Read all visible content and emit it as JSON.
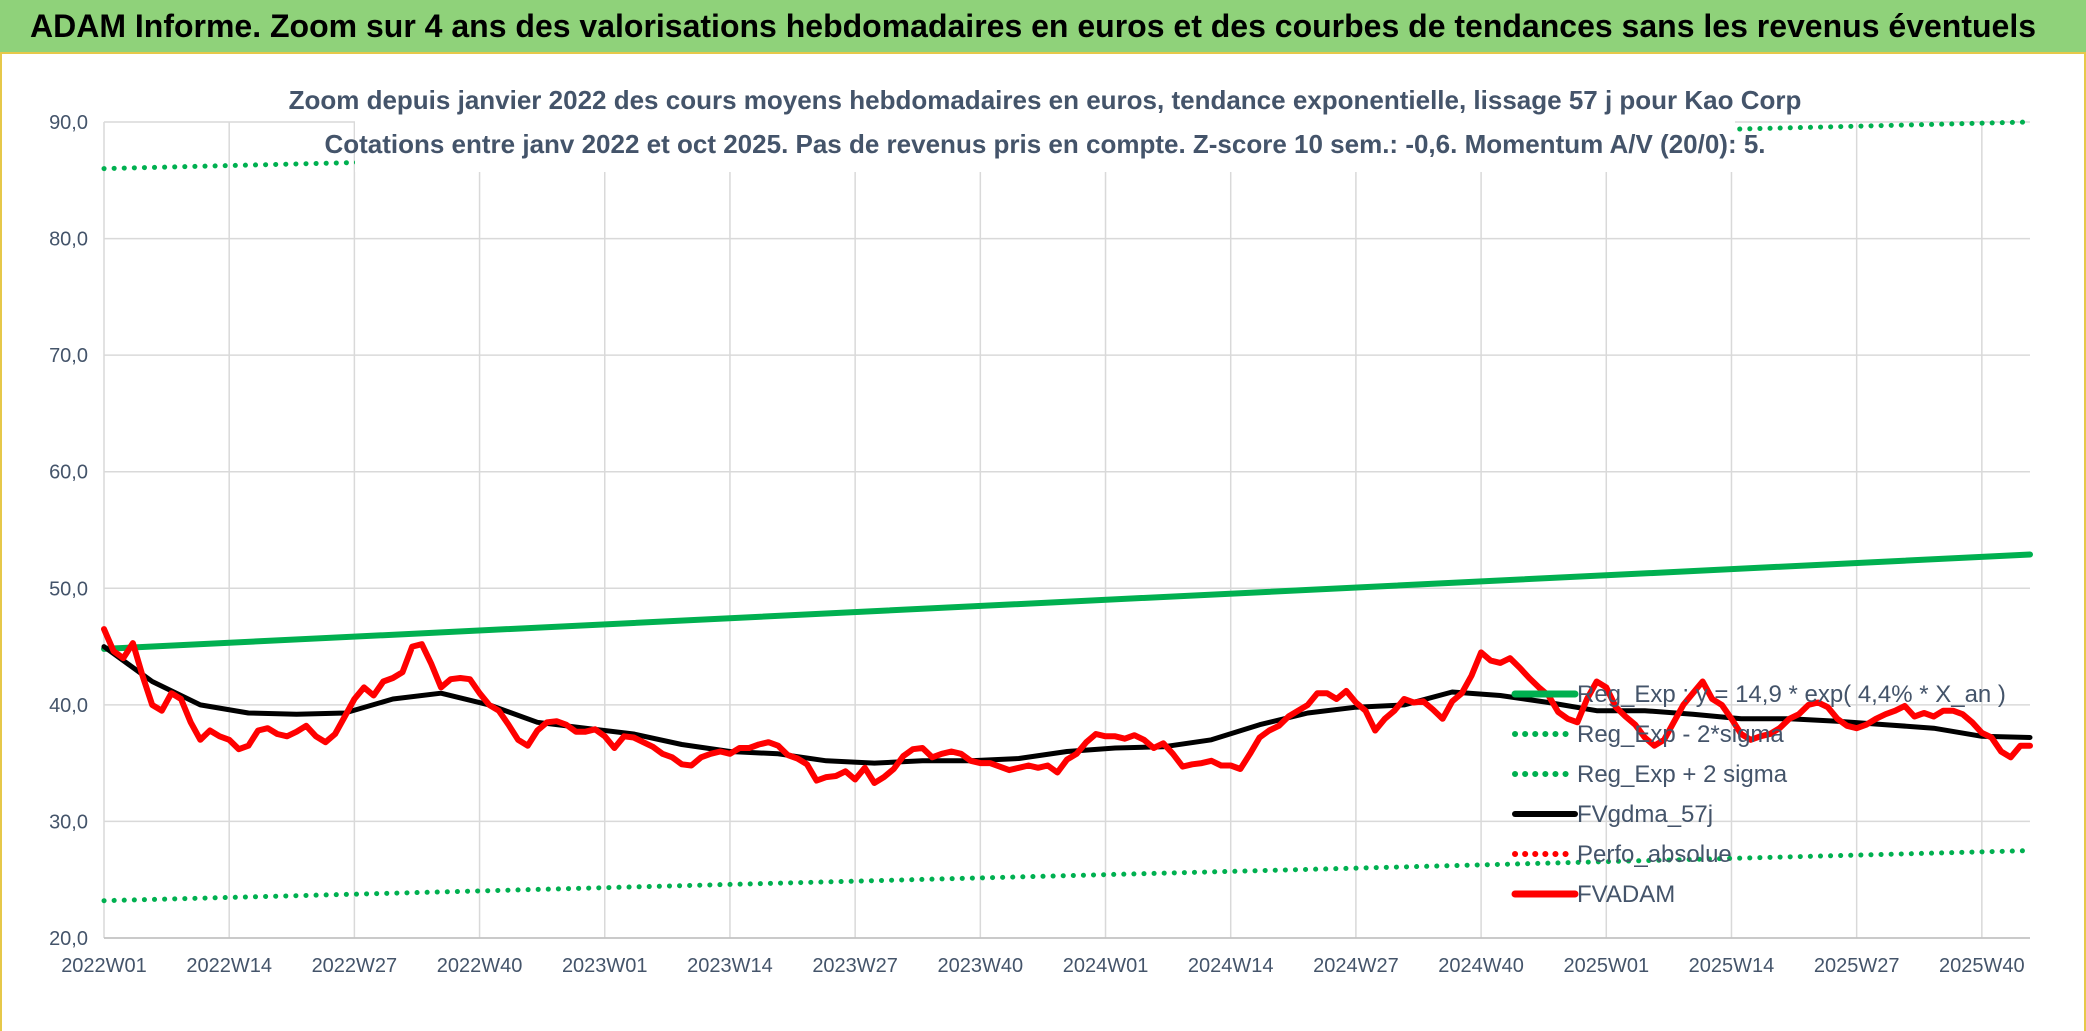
{
  "banner": {
    "title": "ADAM Informe. Zoom sur 4 ans des valorisations hebdomadaires en euros et des courbes de tendances sans les revenus éventuels"
  },
  "colors": {
    "banner_bg": "#8fd27a",
    "reg_exp": "#00b050",
    "fvgdma": "#000000",
    "fvadam": "#ff0000",
    "perfo": "#ff0000"
  },
  "chart_data": {
    "type": "line",
    "title": "Zoom depuis janvier 2022 des cours moyens hebdomadaires en euros, tendance exponentielle, lissage 57 j pour Kao Corp",
    "subtitle": "Cotations entre janv 2022 et oct 2025. Pas de revenus pris en compte. Z-score 10 sem.: -0,6. Momentum A/V (20/0): 5.",
    "ylim": [
      20,
      90
    ],
    "y_ticks": [
      "20,0",
      "30,0",
      "40,0",
      "50,0",
      "60,0",
      "70,0",
      "80,0",
      "90,0"
    ],
    "x_tick_labels": [
      "2022W01",
      "2022W14",
      "2022W27",
      "2022W40",
      "2023W01",
      "2023W14",
      "2023W27",
      "2023W40",
      "2024W01",
      "2024W14",
      "2024W27",
      "2024W40",
      "2025W01",
      "2025W14",
      "2025W27",
      "2025W40"
    ],
    "x_range_weeks": [
      0,
      200
    ],
    "grid": true,
    "legend_position": "right",
    "series": [
      {
        "name": "Reg_Exp : y = 14,9 * exp( 4,4% * X_an )",
        "style": "solid-thick",
        "color": "#00b050",
        "x": [
          0,
          200
        ],
        "values": [
          44.8,
          52.9
        ]
      },
      {
        "name": "Reg_Exp - 2*sigma",
        "style": "dotted",
        "color": "#00b050",
        "x": [
          0,
          200
        ],
        "values": [
          23.2,
          27.5
        ]
      },
      {
        "name": "Reg_Exp + 2 sigma",
        "style": "dotted",
        "color": "#00b050",
        "x": [
          0,
          200
        ],
        "values": [
          86.0,
          90.0
        ]
      },
      {
        "name": "FVgdma_57j",
        "style": "solid",
        "color": "#000000",
        "x": [
          0,
          5,
          10,
          15,
          20,
          25,
          30,
          35,
          40,
          45,
          50,
          55,
          60,
          65,
          70,
          75,
          80,
          85,
          90,
          95,
          100,
          105,
          110,
          115,
          120,
          125,
          130,
          135,
          140,
          145,
          150,
          155,
          160,
          165,
          170,
          175,
          180,
          185,
          190,
          195,
          200
        ],
        "values": [
          45.0,
          42.0,
          40.0,
          39.3,
          39.2,
          39.3,
          40.5,
          41.0,
          40.0,
          38.5,
          38.0,
          37.5,
          36.6,
          36.0,
          35.8,
          35.2,
          35.0,
          35.2,
          35.2,
          35.4,
          36.0,
          36.3,
          36.4,
          37.0,
          38.3,
          39.3,
          39.8,
          40.0,
          41.1,
          40.8,
          40.2,
          39.5,
          39.5,
          39.2,
          38.8,
          38.8,
          38.6,
          38.3,
          38.0,
          37.3,
          37.2
        ]
      },
      {
        "name": "Perfo_absolue",
        "style": "dotted",
        "color": "#ff0000",
        "x": [],
        "values": []
      },
      {
        "name": "FVADAM",
        "style": "solid-thick",
        "color": "#ff0000",
        "x": [
          0,
          1,
          2,
          3,
          4,
          5,
          6,
          7,
          8,
          9,
          10,
          11,
          12,
          13,
          14,
          15,
          16,
          17,
          18,
          19,
          20,
          21,
          22,
          23,
          24,
          25,
          26,
          27,
          28,
          29,
          30,
          31,
          32,
          33,
          34,
          35,
          36,
          37,
          38,
          39,
          40,
          41,
          42,
          43,
          44,
          45,
          46,
          47,
          48,
          49,
          50,
          51,
          52,
          53,
          54,
          55,
          56,
          57,
          58,
          59,
          60,
          61,
          62,
          63,
          64,
          65,
          66,
          67,
          68,
          69,
          70,
          71,
          72,
          73,
          74,
          75,
          76,
          77,
          78,
          79,
          80,
          81,
          82,
          83,
          84,
          85,
          86,
          87,
          88,
          89,
          90,
          91,
          92,
          93,
          94,
          95,
          96,
          97,
          98,
          99,
          100,
          101,
          102,
          103,
          104,
          105,
          106,
          107,
          108,
          109,
          110,
          111,
          112,
          113,
          114,
          115,
          116,
          117,
          118,
          119,
          120,
          121,
          122,
          123,
          124,
          125,
          126,
          127,
          128,
          129,
          130,
          131,
          132,
          133,
          134,
          135,
          136,
          137,
          138,
          139,
          140,
          141,
          142,
          143,
          144,
          145,
          146,
          147,
          148,
          149,
          150,
          151,
          152,
          153,
          154,
          155,
          156,
          157,
          158,
          159,
          160,
          161,
          162,
          163,
          164,
          165,
          166,
          167,
          168,
          169,
          170,
          171,
          172,
          173,
          174,
          175,
          176,
          177,
          178,
          179,
          180,
          181,
          182,
          183,
          184,
          185,
          186,
          187,
          188,
          189,
          190,
          191,
          192,
          193,
          194,
          195,
          196,
          197,
          198,
          199,
          200
        ],
        "values": [
          46.5,
          44.6,
          44.0,
          45.3,
          42.5,
          40.0,
          39.5,
          41.0,
          40.5,
          38.5,
          37.0,
          37.8,
          37.3,
          37.0,
          36.2,
          36.5,
          37.8,
          38.0,
          37.5,
          37.3,
          37.7,
          38.2,
          37.3,
          36.8,
          37.5,
          39.0,
          40.5,
          41.5,
          40.8,
          42.0,
          42.3,
          42.8,
          45.0,
          45.2,
          43.5,
          41.5,
          42.2,
          42.3,
          42.2,
          41.0,
          40.0,
          39.5,
          38.3,
          37.0,
          36.5,
          37.8,
          38.5,
          38.6,
          38.3,
          37.7,
          37.7,
          37.9,
          37.3,
          36.3,
          37.3,
          37.2,
          36.8,
          36.4,
          35.8,
          35.5,
          34.9,
          34.8,
          35.5,
          35.8,
          36.0,
          35.8,
          36.3,
          36.3,
          36.6,
          36.8,
          36.5,
          35.7,
          35.4,
          34.9,
          33.5,
          33.8,
          33.9,
          34.3,
          33.6,
          34.6,
          33.3,
          33.8,
          34.5,
          35.6,
          36.2,
          36.3,
          35.5,
          35.8,
          36.0,
          35.8,
          35.2,
          35.0,
          35.0,
          34.7,
          34.4,
          34.6,
          34.8,
          34.6,
          34.8,
          34.2,
          35.3,
          35.8,
          36.8,
          37.5,
          37.3,
          37.3,
          37.1,
          37.4,
          37.0,
          36.3,
          36.7,
          35.8,
          34.7,
          34.9,
          35.0,
          35.2,
          34.8,
          34.8,
          34.5,
          35.8,
          37.2,
          37.8,
          38.2,
          39.0,
          39.5,
          40.0,
          41.0,
          41.0,
          40.5,
          41.2,
          40.2,
          39.5,
          37.8,
          38.8,
          39.5,
          40.5,
          40.2,
          40.3,
          39.6,
          38.8,
          40.3,
          41.0,
          42.5,
          44.5,
          43.8,
          43.6,
          44.0,
          43.2,
          42.3,
          41.5,
          40.8,
          39.4,
          38.8,
          38.5,
          40.5,
          42.0,
          41.5,
          39.8,
          39.0,
          38.3,
          37.2,
          36.5,
          37.0,
          38.5,
          40.0,
          41.0,
          42.0,
          40.5,
          40.0,
          38.8,
          37.5,
          37.0,
          37.3,
          37.5,
          38.0,
          38.8,
          39.2,
          40.0,
          40.2,
          39.8,
          38.8,
          38.2,
          38.0,
          38.3,
          38.8,
          39.2,
          39.5,
          39.9,
          39.0,
          39.3,
          39.0,
          39.5,
          39.5,
          39.2,
          38.5,
          37.6,
          37.2,
          36.0,
          35.5,
          36.5,
          36.5
        ]
      }
    ]
  }
}
